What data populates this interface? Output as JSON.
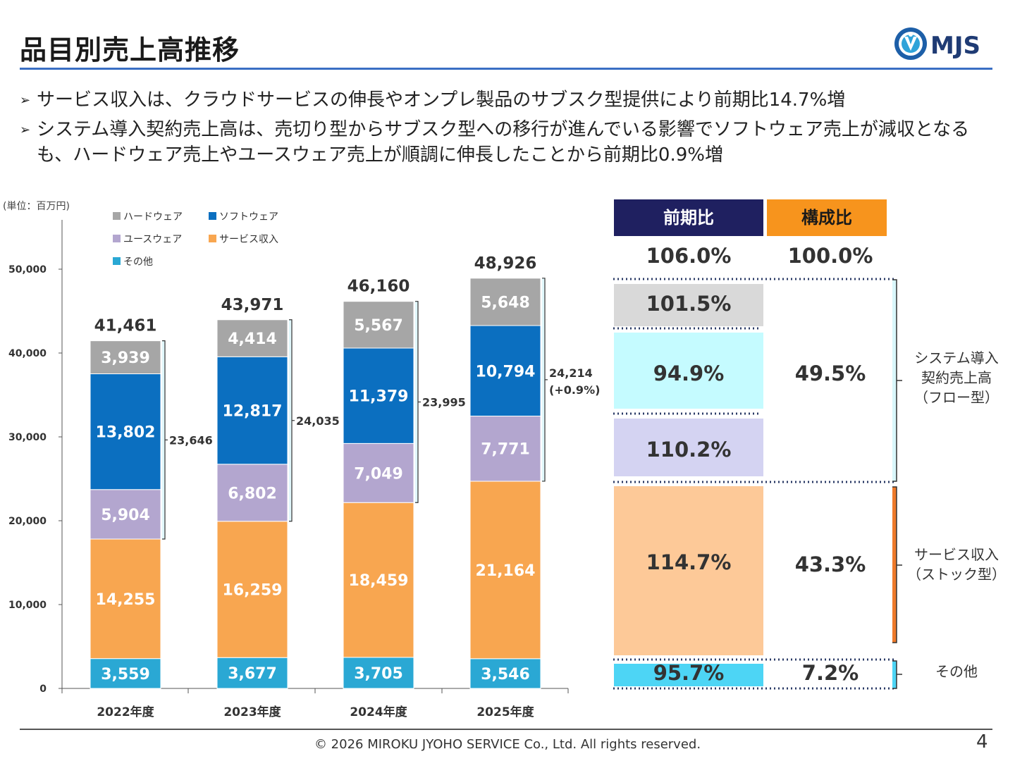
{
  "header": {
    "title": "品目別売上高推移",
    "logo_text": "MJS"
  },
  "bullets": [
    "サービス収入は、クラウドサービスの伸長やオンプレ製品のサブスク型提供により前期比14.7%増",
    "システム導入契約売上高は、売切り型からサブスク型への移行が進んでいる影響でソフトウェア売上が減収となるも、ハードウェア売上やユースウェア売上が順調に伸長したことから前期比0.9%増"
  ],
  "chart_unit": "(単位：百万円)",
  "chart_data": {
    "type": "bar",
    "stacked": true,
    "categories": [
      "2022年度",
      "2023年度",
      "2024年度",
      "2025年度"
    ],
    "ylim": [
      0,
      50000
    ],
    "yticks": [
      "0",
      "10,000",
      "20,000",
      "30,000",
      "40,000",
      "50,000"
    ],
    "series": [
      {
        "name": "その他",
        "color": "#2aa8d4",
        "values": [
          3559,
          3677,
          3705,
          3546
        ],
        "labels": [
          "3,559",
          "3,677",
          "3,705",
          "3,546"
        ]
      },
      {
        "name": "サービス収入",
        "color": "#f8a650",
        "values": [
          14255,
          16259,
          18459,
          21164
        ],
        "labels": [
          "14,255",
          "16,259",
          "18,459",
          "21,164"
        ]
      },
      {
        "name": "ユースウェア",
        "color": "#b3a6cf",
        "values": [
          5904,
          6802,
          7049,
          7771
        ],
        "labels": [
          "5,904",
          "6,802",
          "7,049",
          "7,771"
        ]
      },
      {
        "name": "ソフトウェア",
        "color": "#0b6fc0",
        "values": [
          13802,
          12817,
          11379,
          10794
        ],
        "labels": [
          "13,802",
          "12,817",
          "11,379",
          "10,794"
        ]
      },
      {
        "name": "ハードウェア",
        "color": "#a6a6a6",
        "values": [
          3939,
          4414,
          5567,
          5648
        ],
        "labels": [
          "3,939",
          "4,414",
          "5,567",
          "5,648"
        ]
      }
    ],
    "totals": [
      "41,461",
      "43,971",
      "46,160",
      "48,926"
    ],
    "bracket_values": [
      23646,
      24035,
      23995,
      24214
    ],
    "bracket_labels": [
      "23,646",
      "24,035",
      "23,995",
      "24,214"
    ],
    "bracket_note": "(+0.9%)",
    "legend_order": [
      "ハードウェア",
      "ソフトウェア",
      "ユースウェア",
      "サービス収入",
      "その他"
    ],
    "legend_position": "top-left"
  },
  "table": {
    "col_yoy": "前期比",
    "col_comp": "構成比",
    "total_yoy": "106.0%",
    "total_comp": "100.0%",
    "hardware_yoy": "101.5%",
    "software_yoy": "94.9%",
    "flow_comp": "49.5%",
    "useware_yoy": "110.2%",
    "service_yoy": "114.7%",
    "service_comp": "43.3%",
    "other_yoy": "95.7%",
    "other_comp": "7.2%",
    "label_flow": [
      "システム導入",
      "契約売上高",
      "（フロー型）"
    ],
    "label_stock": [
      "サービス収入",
      "（ストック型）"
    ],
    "label_other": "その他",
    "colors": {
      "yoy_header": "#1f2060",
      "comp_header": "#f7941d",
      "hardware": "#d9d9d9",
      "software": "#c5fbff",
      "useware": "#d4d3f2",
      "service": "#fdc998",
      "other": "#4dd5f5"
    }
  },
  "footer": {
    "copyright": "© 2026 MIROKU JYOHO SERVICE Co., Ltd. All rights reserved.",
    "page": "4"
  }
}
